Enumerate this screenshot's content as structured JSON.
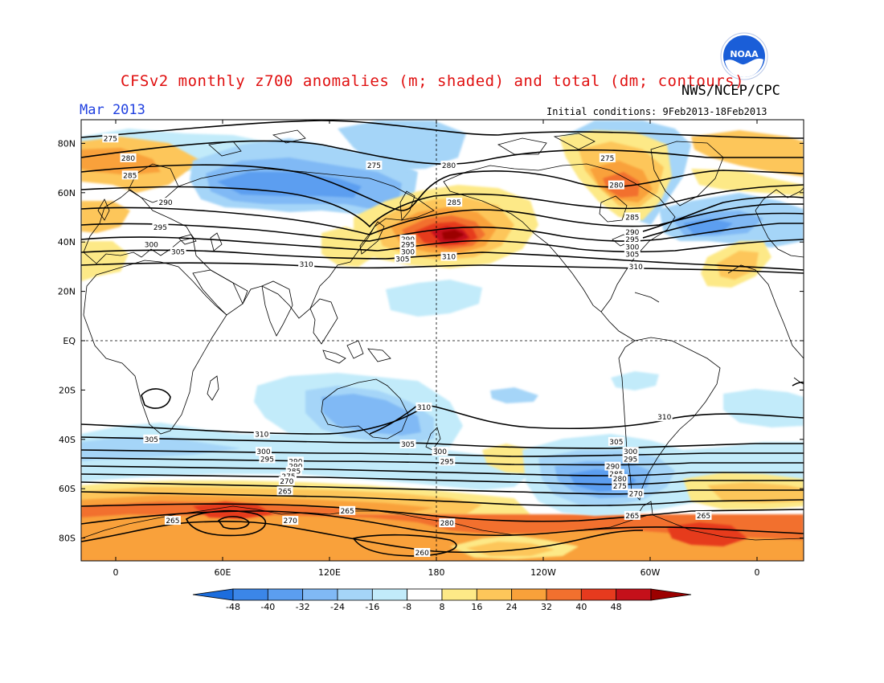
{
  "header": {
    "title": "CFSv2 monthly z700 anomalies (m; shaded) and total (dm; contours)",
    "agency": "NWS/NCEP/CPC",
    "month": "Mar 2013",
    "initial_conditions": "Initial conditions: 9Feb2013-18Feb2013"
  },
  "logo": {
    "text": "NOAA",
    "icon": "noaa-logo"
  },
  "axes": {
    "lat_labels": [
      "80N",
      "60N",
      "40N",
      "20N",
      "EQ",
      "20S",
      "40S",
      "60S",
      "80S"
    ],
    "lon_labels": [
      "0",
      "60E",
      "120E",
      "180",
      "120W",
      "60W",
      "0"
    ]
  },
  "contour_labels": [
    {
      "text": "275",
      "lon": -3,
      "lat": 82
    },
    {
      "text": "280",
      "lon": 7,
      "lat": 74
    },
    {
      "text": "285",
      "lon": 8,
      "lat": 67
    },
    {
      "text": "290",
      "lon": 28,
      "lat": 56
    },
    {
      "text": "295",
      "lon": 25,
      "lat": 46
    },
    {
      "text": "300",
      "lon": 20,
      "lat": 39
    },
    {
      "text": "305",
      "lon": 35,
      "lat": 36
    },
    {
      "text": "310",
      "lon": 107,
      "lat": 31
    },
    {
      "text": "275",
      "lon": 145,
      "lat": 71
    },
    {
      "text": "280",
      "lon": 187,
      "lat": 71
    },
    {
      "text": "285",
      "lon": 190,
      "lat": 56
    },
    {
      "text": "290",
      "lon": 164,
      "lat": 41
    },
    {
      "text": "295",
      "lon": 164,
      "lat": 39
    },
    {
      "text": "300",
      "lon": 164,
      "lat": 36
    },
    {
      "text": "305",
      "lon": 161,
      "lat": 33
    },
    {
      "text": "310",
      "lon": 187,
      "lat": 34
    },
    {
      "text": "275",
      "lon": 276,
      "lat": 74
    },
    {
      "text": "280",
      "lon": 281,
      "lat": 63
    },
    {
      "text": "285",
      "lon": 290,
      "lat": 50
    },
    {
      "text": "290",
      "lon": 290,
      "lat": 44
    },
    {
      "text": "295",
      "lon": 290,
      "lat": 41
    },
    {
      "text": "300",
      "lon": 290,
      "lat": 38
    },
    {
      "text": "305",
      "lon": 290,
      "lat": 35
    },
    {
      "text": "310",
      "lon": 292,
      "lat": 30
    },
    {
      "text": "310",
      "lon": 82,
      "lat": -38
    },
    {
      "text": "305",
      "lon": 20,
      "lat": -40
    },
    {
      "text": "300",
      "lon": 83,
      "lat": -45
    },
    {
      "text": "295",
      "lon": 85,
      "lat": -48
    },
    {
      "text": "305",
      "lon": 164,
      "lat": -42
    },
    {
      "text": "310",
      "lon": 173,
      "lat": -27
    },
    {
      "text": "300",
      "lon": 182,
      "lat": -45
    },
    {
      "text": "295",
      "lon": 186,
      "lat": -49
    },
    {
      "text": "310",
      "lon": 308,
      "lat": -31
    },
    {
      "text": "305",
      "lon": 281,
      "lat": -41
    },
    {
      "text": "300",
      "lon": 289,
      "lat": -45
    },
    {
      "text": "295",
      "lon": 289,
      "lat": -48
    },
    {
      "text": "290",
      "lon": 279,
      "lat": -51
    },
    {
      "text": "285",
      "lon": 281,
      "lat": -54
    },
    {
      "text": "280",
      "lon": 283,
      "lat": -56
    },
    {
      "text": "275",
      "lon": 283,
      "lat": -59
    },
    {
      "text": "270",
      "lon": 292,
      "lat": -62
    },
    {
      "text": "265",
      "lon": 290,
      "lat": -71
    },
    {
      "text": "290",
      "lon": 101,
      "lat": -49
    },
    {
      "text": "290",
      "lon": 101,
      "lat": -51
    },
    {
      "text": "285",
      "lon": 100,
      "lat": -53
    },
    {
      "text": "275",
      "lon": 97,
      "lat": -55
    },
    {
      "text": "270",
      "lon": 96,
      "lat": -57
    },
    {
      "text": "265",
      "lon": 95,
      "lat": -61
    },
    {
      "text": "265",
      "lon": 130,
      "lat": -69
    },
    {
      "text": "270",
      "lon": 98,
      "lat": -73
    },
    {
      "text": "265",
      "lon": 32,
      "lat": -73
    },
    {
      "text": "280",
      "lon": 186,
      "lat": -74
    },
    {
      "text": "260",
      "lon": 172,
      "lat": -86
    },
    {
      "text": "265",
      "lon": 330,
      "lat": -71
    }
  ],
  "colorbar": {
    "labels": [
      "-48",
      "-40",
      "-32",
      "-24",
      "-16",
      "-8",
      "8",
      "16",
      "24",
      "32",
      "40",
      "48"
    ],
    "colors": [
      "#1c6ddd",
      "#3b86e8",
      "#5b9ef0",
      "#80b9f5",
      "#a5d5f8",
      "#c2ebfa",
      "#ffffff",
      "#fde987",
      "#fdc65a",
      "#f9a13a",
      "#f2702e",
      "#e63a1e",
      "#c4101a",
      "#9c0000"
    ]
  },
  "colors": {
    "title": "#e01010",
    "month": "#2040e0",
    "noaa_blue": "#1a5ed8"
  }
}
